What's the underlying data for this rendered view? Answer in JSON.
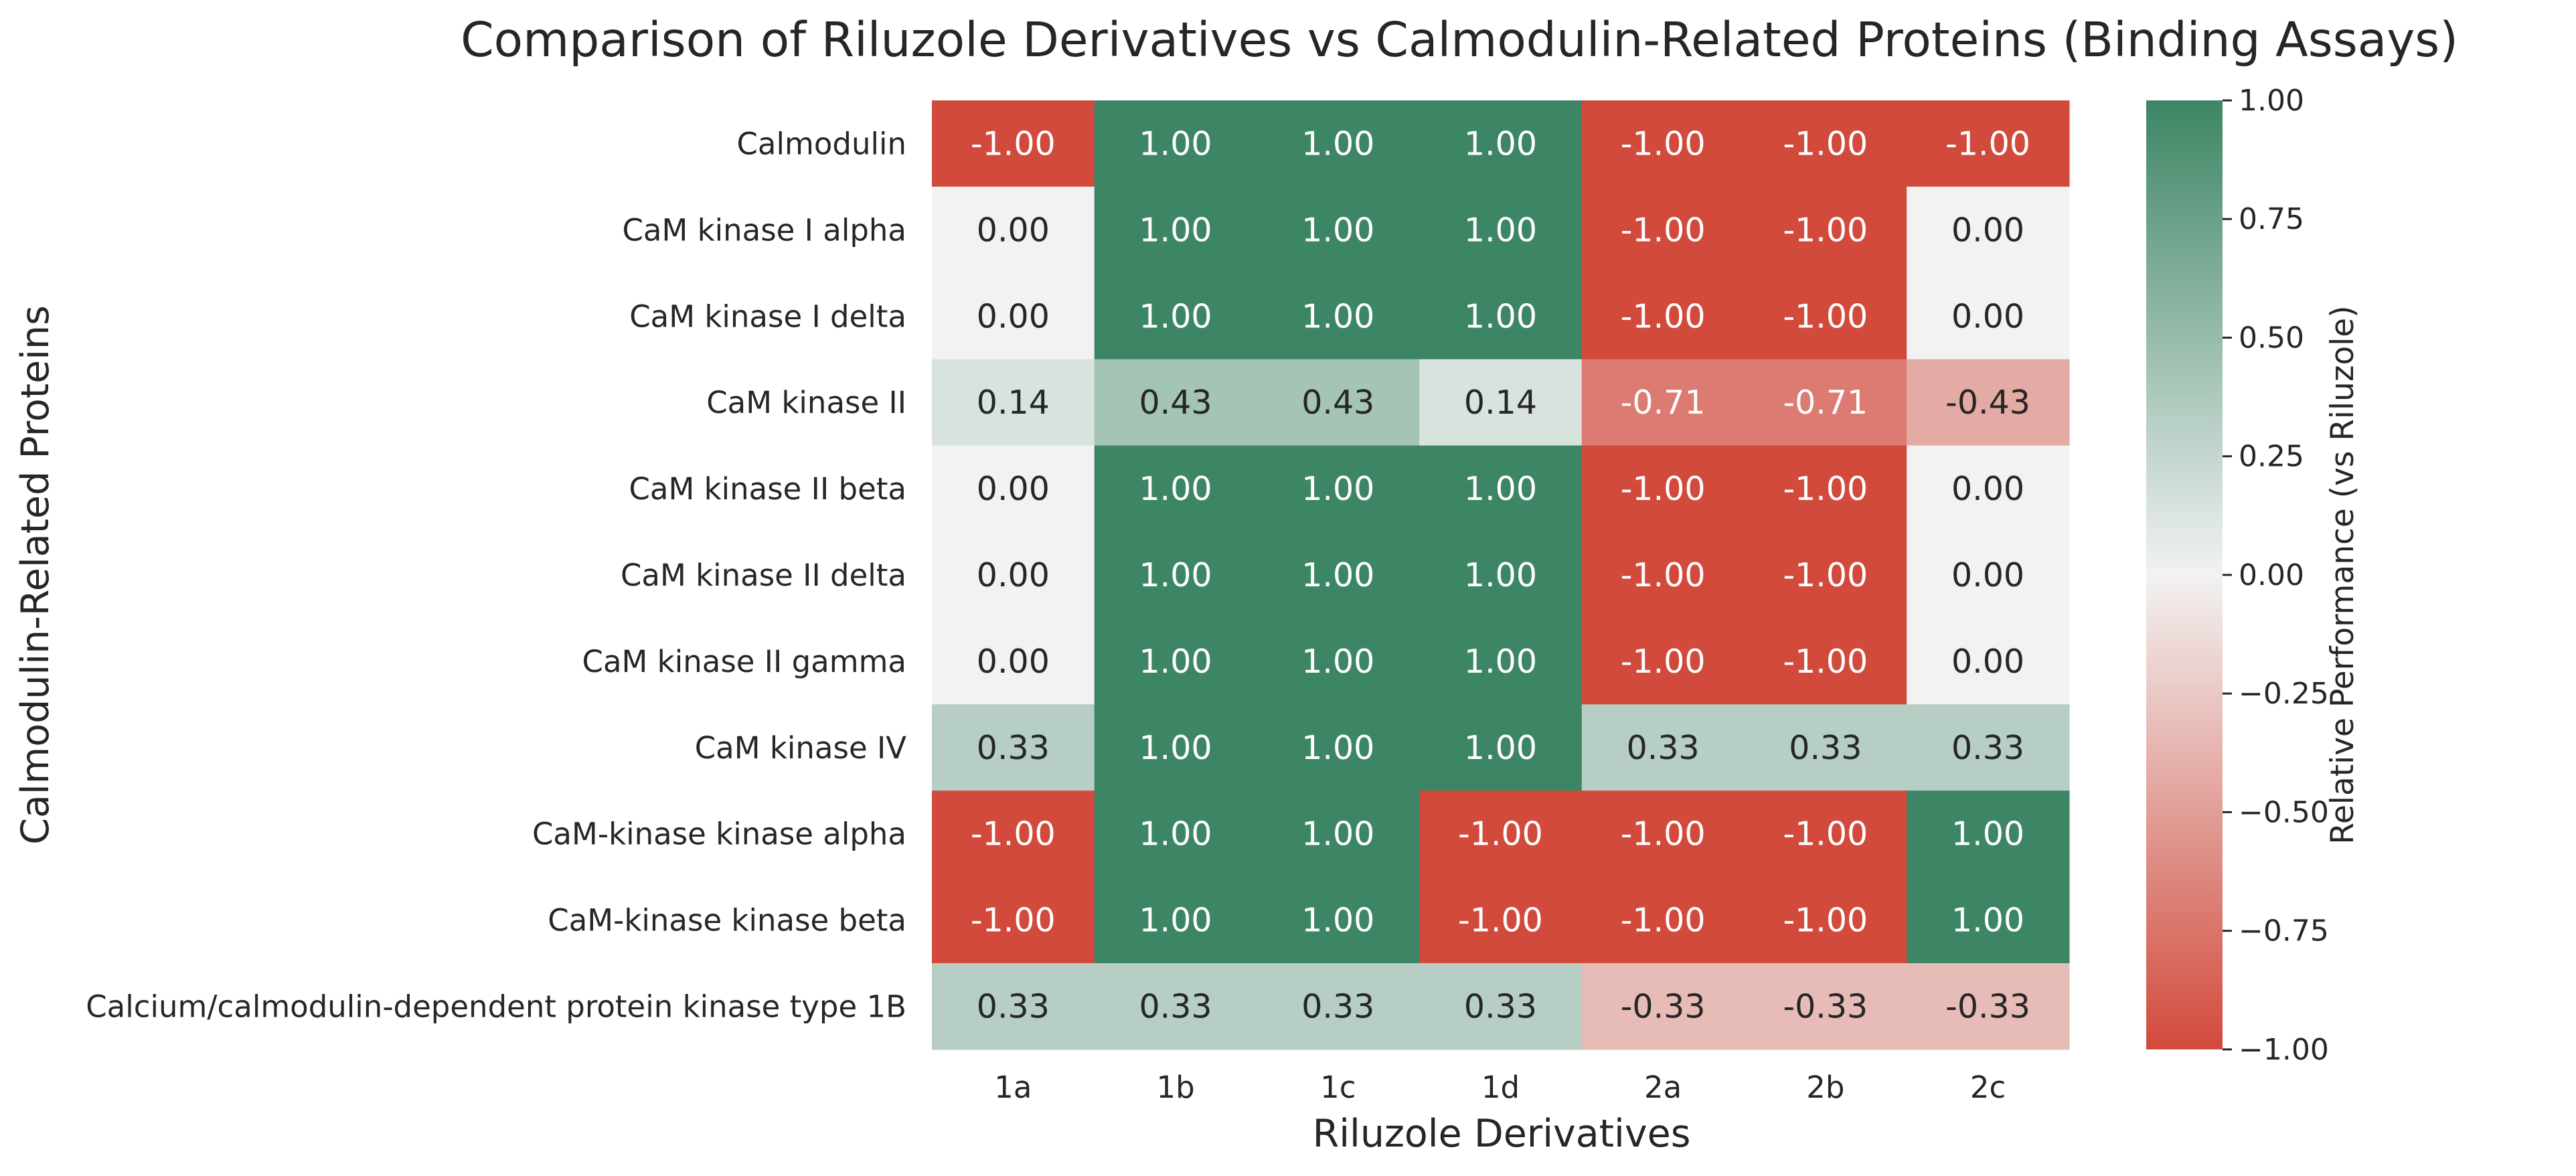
{
  "chart_data": {
    "type": "heatmap",
    "title": "Comparison of Riluzole Derivatives vs Calmodulin-Related Proteins (Binding Assays)",
    "xlabel": "Riluzole Derivatives",
    "ylabel": "Calmodulin-Related Proteins",
    "x_categories": [
      "1a",
      "1b",
      "1c",
      "1d",
      "2a",
      "2b",
      "2c"
    ],
    "y_categories": [
      "Calmodulin",
      "CaM kinase I alpha",
      "CaM kinase I delta",
      "CaM kinase II",
      "CaM kinase II beta",
      "CaM kinase II delta",
      "CaM kinase II gamma",
      "CaM kinase IV",
      "CaM-kinase kinase alpha",
      "CaM-kinase kinase beta",
      "Calcium/calmodulin-dependent protein kinase type 1B"
    ],
    "values": [
      [
        -1.0,
        1.0,
        1.0,
        1.0,
        -1.0,
        -1.0,
        -1.0
      ],
      [
        0.0,
        1.0,
        1.0,
        1.0,
        -1.0,
        -1.0,
        0.0
      ],
      [
        0.0,
        1.0,
        1.0,
        1.0,
        -1.0,
        -1.0,
        0.0
      ],
      [
        0.14,
        0.43,
        0.43,
        0.14,
        -0.71,
        -0.71,
        -0.43
      ],
      [
        0.0,
        1.0,
        1.0,
        1.0,
        -1.0,
        -1.0,
        0.0
      ],
      [
        0.0,
        1.0,
        1.0,
        1.0,
        -1.0,
        -1.0,
        0.0
      ],
      [
        0.0,
        1.0,
        1.0,
        1.0,
        -1.0,
        -1.0,
        0.0
      ],
      [
        0.33,
        1.0,
        1.0,
        1.0,
        0.33,
        0.33,
        0.33
      ],
      [
        -1.0,
        1.0,
        1.0,
        -1.0,
        -1.0,
        -1.0,
        1.0
      ],
      [
        -1.0,
        1.0,
        1.0,
        -1.0,
        -1.0,
        -1.0,
        1.0
      ],
      [
        0.33,
        0.33,
        0.33,
        0.33,
        -0.33,
        -0.33,
        -0.33
      ]
    ],
    "value_format": "2 decimals",
    "colorbar": {
      "label": "Relative Performance (vs Riluzole)",
      "range": [
        -1.0,
        1.0
      ],
      "ticks": [
        "1.00",
        "0.75",
        "0.50",
        "0.25",
        "0.00",
        "−0.25",
        "−0.50",
        "−0.75",
        "−1.00"
      ],
      "tick_values": [
        1.0,
        0.75,
        0.5,
        0.25,
        0.0,
        -0.25,
        -0.5,
        -0.75,
        -1.0
      ],
      "color_low": "#d24a3c",
      "color_mid": "#f2f2f2",
      "color_high": "#3d8665"
    },
    "colors": {
      "text_dark": "#262626",
      "text_light": "#ffffff"
    },
    "grid": false
  }
}
